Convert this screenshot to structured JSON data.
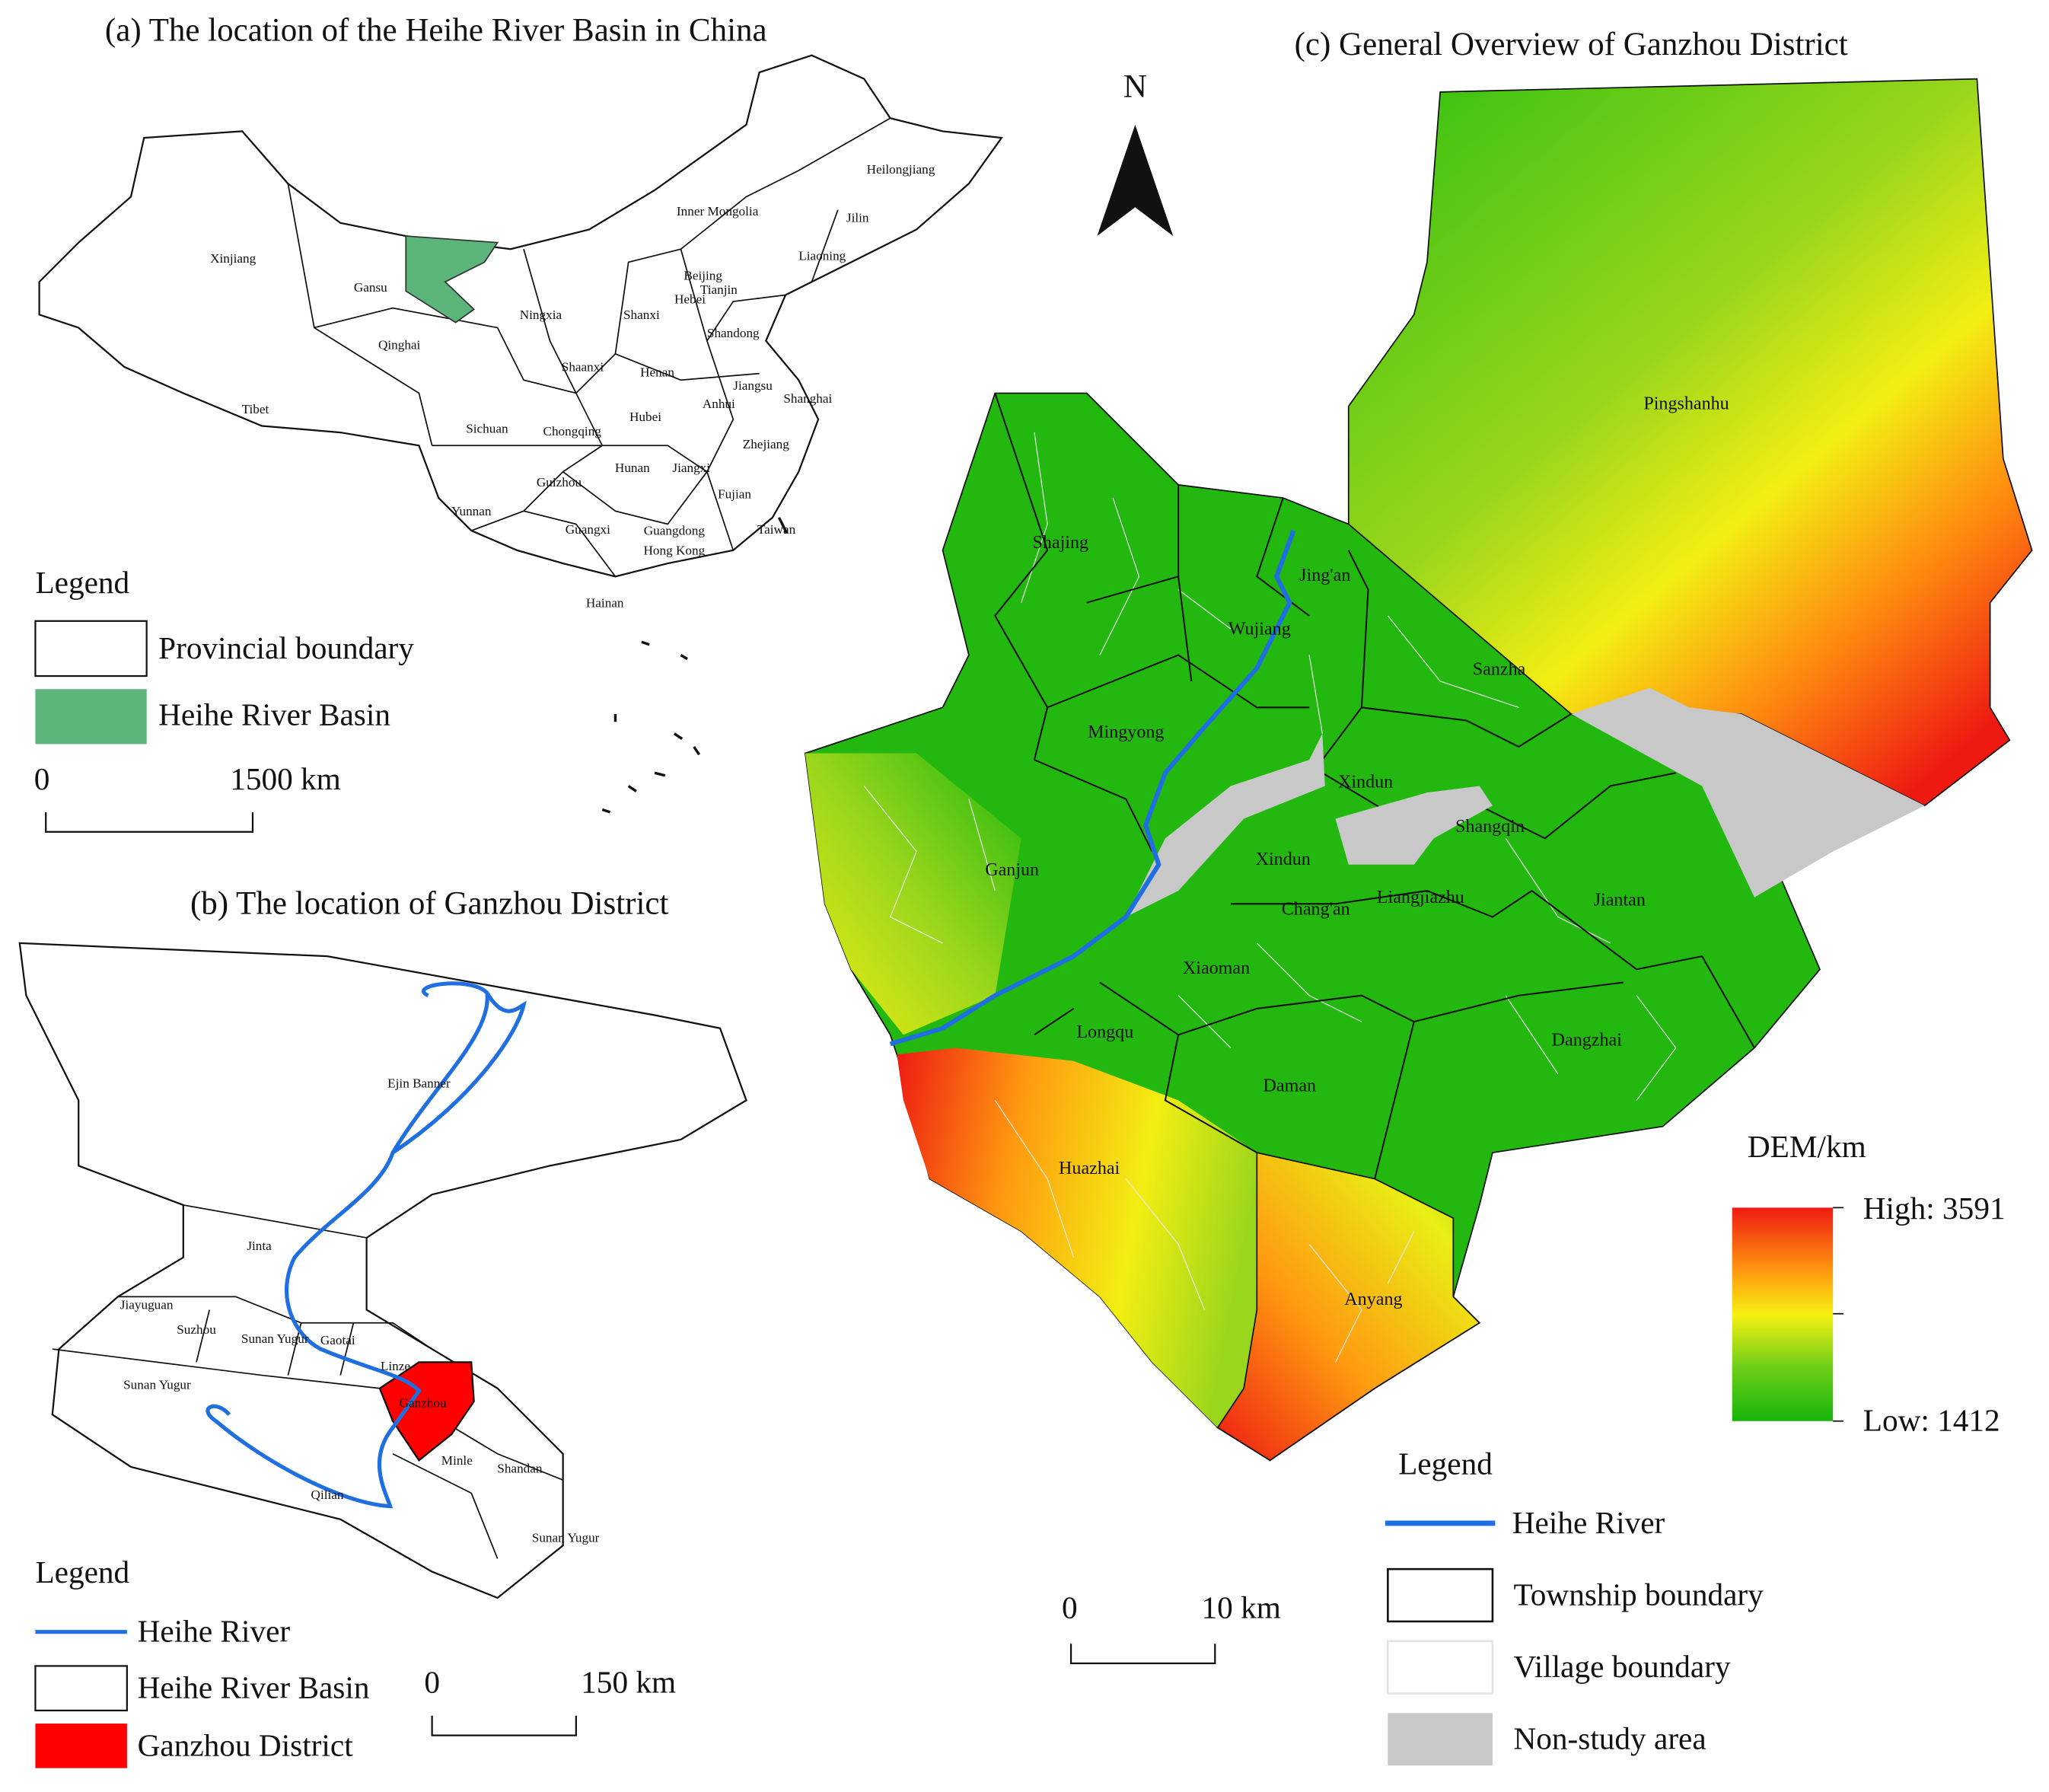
{
  "panel_a": {
    "title": "(a) The location of the Heihe River Basin in China",
    "labels": [
      "Xinjiang",
      "Gansu",
      "Inner Mongolia",
      "Heilongjiang",
      "Jilin",
      "Liaoning",
      "Beijing",
      "Tianjin",
      "Hebei",
      "Ningxia",
      "Shanxi",
      "Shandong",
      "Qinghai",
      "Shaanxi",
      "Henan",
      "Jiangsu",
      "Shanghai",
      "Tibet",
      "Anhui",
      "Hubei",
      "Zhejiang",
      "Sichuan",
      "Chongqing",
      "Hunan",
      "Jiangxi",
      "Guizhou",
      "Fujian",
      "Yunnan",
      "Guangxi",
      "Guangdong",
      "Taiwan",
      "Hong Kong",
      "Hainan"
    ],
    "legend": {
      "title": "Legend",
      "items": [
        "Provincial boundary",
        "Heihe River Basin"
      ]
    },
    "scale": [
      "0",
      "1500 km"
    ]
  },
  "panel_b": {
    "title": "(b) The location of Ganzhou District",
    "labels": [
      "Ejin Banner",
      "Jinta",
      "Jiayuguan",
      "Suzhou",
      "Sunan Yugur",
      "Gaotai",
      "Linze",
      "Ganzhou",
      "Sunan Yugur",
      "Minle",
      "Shandan",
      "Qilian",
      "Sunan Yugur"
    ],
    "legend": {
      "title": "Legend",
      "items": [
        "Heihe River",
        "Heihe River Basin",
        "Ganzhou District"
      ]
    },
    "scale": [
      "0",
      "150 km"
    ]
  },
  "panel_c": {
    "title": "(c) General Overview of Ganzhou District",
    "north": "N",
    "labels": [
      "Pingshanhu",
      "Shajing",
      "Jing'an",
      "Wujiang",
      "Sanzha",
      "Mingyong",
      "Xindun",
      "Shangqin",
      "Ganjun",
      "Xindun",
      "Chang'an",
      "Liangjiazhu",
      "Jiantan",
      "Xiaoman",
      "Longqu",
      "Dangzhai",
      "Daman",
      "Huazhai",
      "Anyang"
    ],
    "dem_legend": {
      "title": "DEM/km",
      "high": "High: 3591",
      "low": "Low: 1412"
    },
    "legend": {
      "title": "Legend",
      "items": [
        "Heihe River",
        "Township boundary",
        "Village boundary",
        "Non-study area"
      ]
    },
    "scale": [
      "0",
      "10 km"
    ]
  }
}
